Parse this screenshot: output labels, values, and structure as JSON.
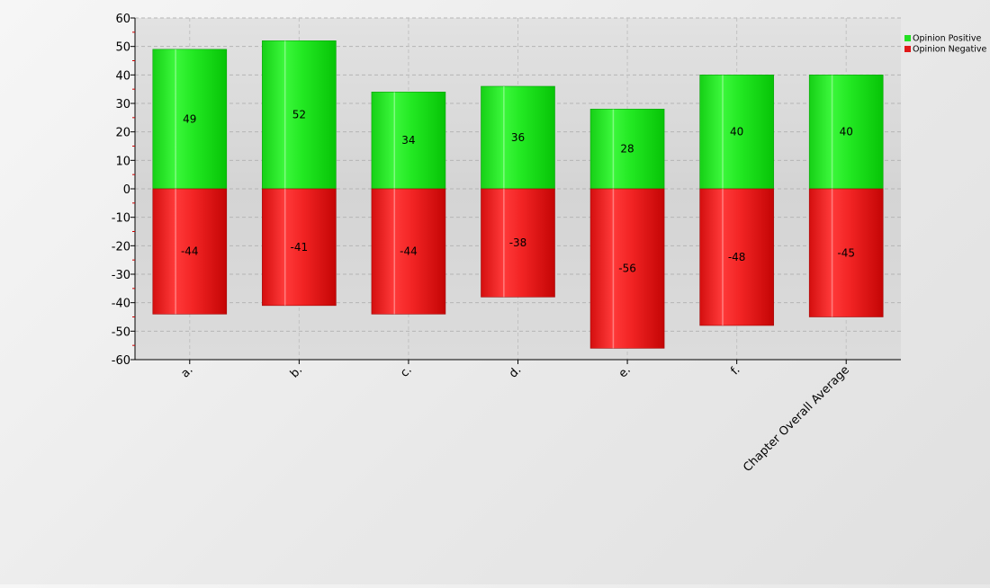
{
  "colors": {
    "positive": "#22e022",
    "negative": "#e01818",
    "plot_bg": "#dcdcdc",
    "grid": "#b8b8b8"
  },
  "chart_data": {
    "type": "bar",
    "stacked": true,
    "categories": [
      "a.",
      "b.",
      "c.",
      "d.",
      "e.",
      "f.",
      "Chapter Overall Average"
    ],
    "series": [
      {
        "name": "Opinion Positive",
        "values": [
          49,
          52,
          34,
          36,
          28,
          40,
          40
        ],
        "color": "#22e022"
      },
      {
        "name": "Opinion Negative",
        "values": [
          -44,
          -41,
          -44,
          -38,
          -56,
          -48,
          -45
        ],
        "color": "#e01818"
      }
    ],
    "yticks": [
      60,
      50,
      40,
      30,
      20,
      10,
      0,
      -10,
      -20,
      -30,
      -40,
      -50,
      -60
    ],
    "ylim": [
      -60,
      60
    ],
    "title": "",
    "xlabel": "",
    "ylabel": "",
    "grid": true,
    "legend_position": "top-right"
  }
}
